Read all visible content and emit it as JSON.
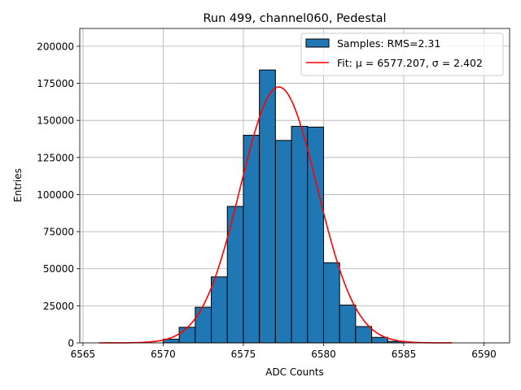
{
  "chart_data": {
    "type": "bar",
    "title": "Run 499, channel060, Pedestal",
    "xlabel": "ADC Counts",
    "ylabel": "Entries",
    "xlim": [
      6564.8,
      6591.6
    ],
    "ylim": [
      0,
      212000
    ],
    "xticks": [
      6565,
      6570,
      6575,
      6580,
      6585,
      6590
    ],
    "yticks": [
      0,
      25000,
      50000,
      75000,
      100000,
      125000,
      150000,
      175000,
      200000
    ],
    "grid": true,
    "legend_position": "top-right",
    "bin_width": 1,
    "histogram": {
      "name": "Samples: RMS=2.31",
      "color": "#1f77b4",
      "edgecolor": "#000000",
      "bins": [
        {
          "x": 6570,
          "value": 2500
        },
        {
          "x": 6571,
          "value": 10500
        },
        {
          "x": 6572,
          "value": 24000
        },
        {
          "x": 6573,
          "value": 44500
        },
        {
          "x": 6574,
          "value": 92000
        },
        {
          "x": 6575,
          "value": 140000
        },
        {
          "x": 6576,
          "value": 184000
        },
        {
          "x": 6577,
          "value": 136500
        },
        {
          "x": 6578,
          "value": 146000
        },
        {
          "x": 6579,
          "value": 145500
        },
        {
          "x": 6580,
          "value": 54000
        },
        {
          "x": 6581,
          "value": 25500
        },
        {
          "x": 6582,
          "value": 11000
        },
        {
          "x": 6583,
          "value": 3700
        },
        {
          "x": 6584,
          "value": 1000
        }
      ]
    },
    "fit": {
      "name": "Fit: μ = 6577.207, σ = 2.402",
      "color": "#ff0000",
      "mu": 6577.207,
      "sigma": 2.402,
      "amplitude": 172500,
      "x_range": [
        6566,
        6588
      ]
    }
  }
}
